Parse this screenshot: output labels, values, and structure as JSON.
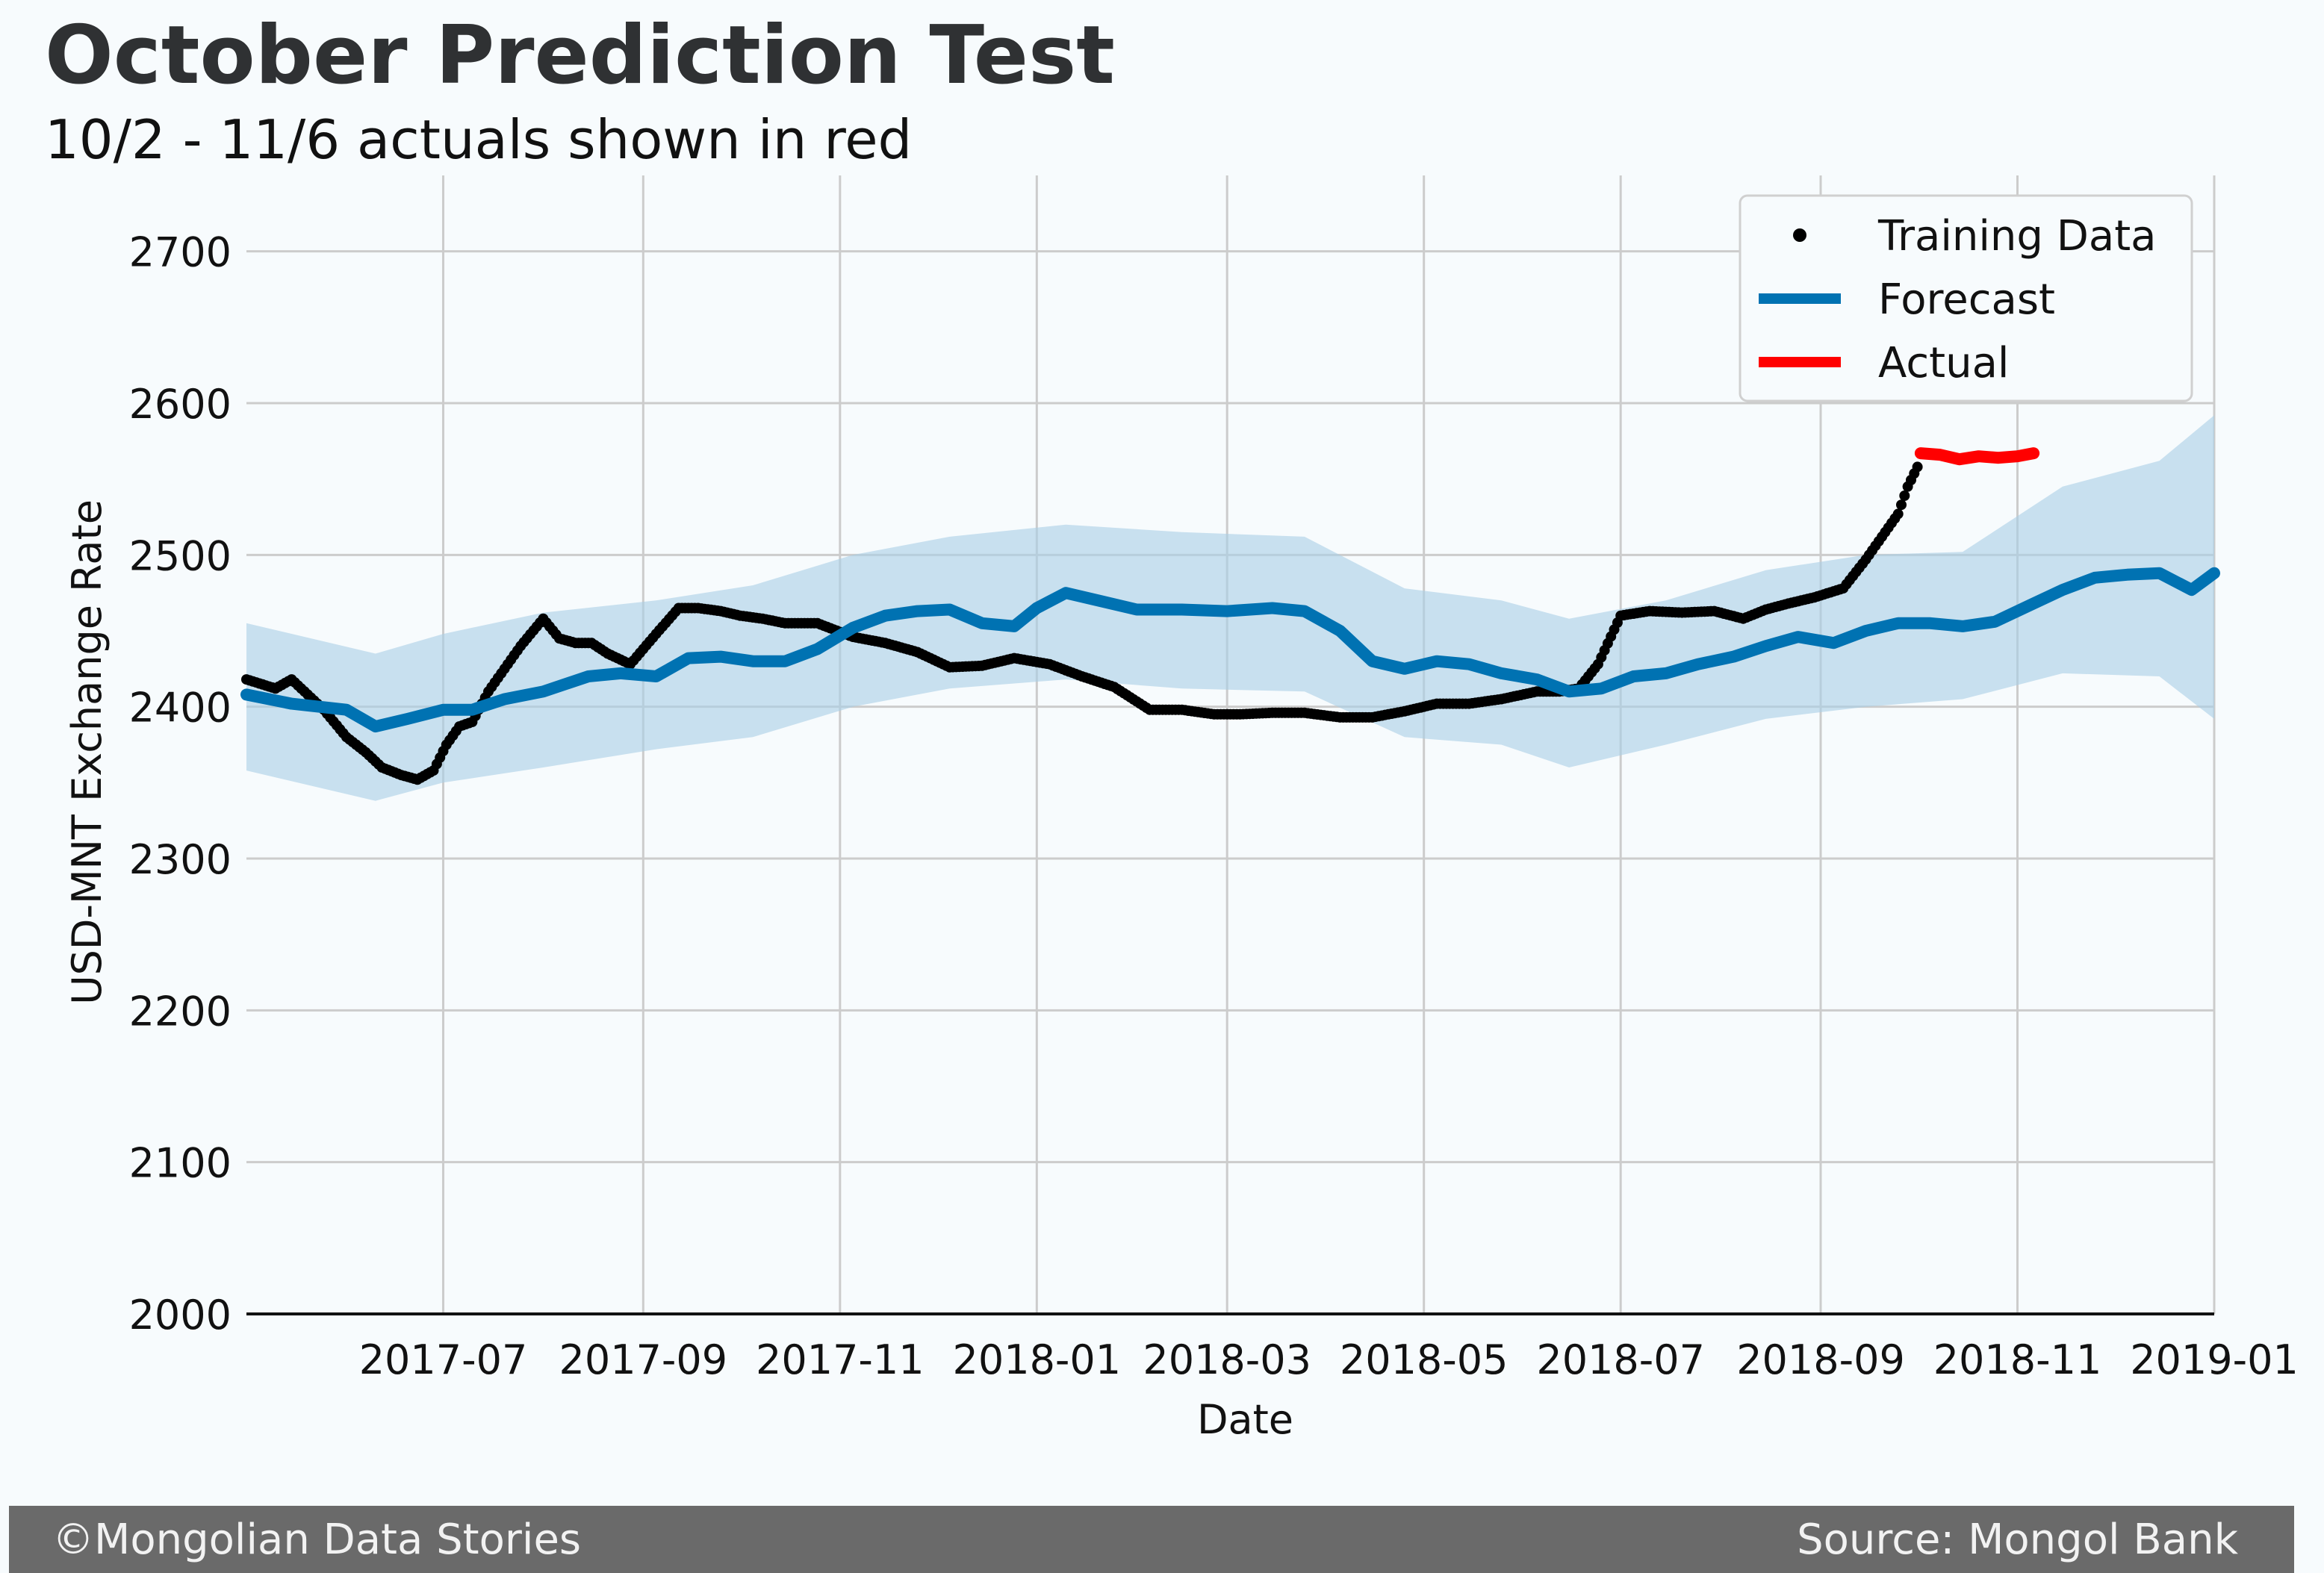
{
  "header": {
    "title": "October Prediction Test",
    "subtitle": "10/2 - 11/6 actuals shown in red"
  },
  "footer": {
    "left_text": "©Mongolian Data Stories",
    "right_text": "Source: Mongol Bank"
  },
  "colors": {
    "background": "#f7fbfd",
    "training": "#000000",
    "forecast": "#0072b2",
    "band": "#a8cfe6",
    "actual": "#ff0000",
    "grid": "#cccccc"
  },
  "chart_data": {
    "type": "line",
    "xlabel": "Date",
    "ylabel": "USD-MNT Exchange Rate",
    "xlim": [
      "2017-05-01",
      "2019-01-01"
    ],
    "ylim": [
      2000,
      2750
    ],
    "xticks": [
      "2017-07",
      "2017-09",
      "2017-11",
      "2018-01",
      "2018-03",
      "2018-05",
      "2018-07",
      "2018-09",
      "2018-11",
      "2019-01"
    ],
    "yticks": [
      2000,
      2100,
      2200,
      2300,
      2400,
      2500,
      2600,
      2700
    ],
    "grid": true,
    "legend_position": "top-right",
    "legend": [
      "Training Data",
      "Forecast",
      "Actual"
    ],
    "series": [
      {
        "name": "Training Data",
        "type": "scatter",
        "x": [
          "2017-05-01",
          "2017-05-10",
          "2017-05-15",
          "2017-05-20",
          "2017-05-25",
          "2017-06-01",
          "2017-06-07",
          "2017-06-12",
          "2017-06-18",
          "2017-06-23",
          "2017-06-28",
          "2017-07-02",
          "2017-07-06",
          "2017-07-10",
          "2017-07-15",
          "2017-07-20",
          "2017-07-25",
          "2017-08-01",
          "2017-08-06",
          "2017-08-11",
          "2017-08-16",
          "2017-08-21",
          "2017-08-28",
          "2017-09-05",
          "2017-09-12",
          "2017-09-18",
          "2017-09-25",
          "2017-10-01",
          "2017-10-08",
          "2017-10-15",
          "2017-10-25",
          "2017-11-05",
          "2017-11-15",
          "2017-11-25",
          "2017-12-05",
          "2017-12-15",
          "2017-12-25",
          "2018-01-05",
          "2018-01-15",
          "2018-01-25",
          "2018-02-05",
          "2018-02-15",
          "2018-02-25",
          "2018-03-05",
          "2018-03-15",
          "2018-03-25",
          "2018-04-05",
          "2018-04-15",
          "2018-04-25",
          "2018-05-05",
          "2018-05-15",
          "2018-05-25",
          "2018-06-05",
          "2018-06-12",
          "2018-06-18",
          "2018-06-24",
          "2018-07-01",
          "2018-07-10",
          "2018-07-20",
          "2018-07-30",
          "2018-08-08",
          "2018-08-15",
          "2018-08-22",
          "2018-08-30",
          "2018-09-08",
          "2018-09-15",
          "2018-09-20",
          "2018-09-25",
          "2018-09-28",
          "2018-10-01"
        ],
        "y": [
          2418,
          2412,
          2418,
          2408,
          2398,
          2380,
          2370,
          2360,
          2355,
          2352,
          2358,
          2375,
          2387,
          2390,
          2410,
          2425,
          2440,
          2458,
          2445,
          2442,
          2442,
          2435,
          2428,
          2448,
          2465,
          2465,
          2463,
          2460,
          2458,
          2455,
          2455,
          2446,
          2442,
          2436,
          2426,
          2427,
          2432,
          2428,
          2420,
          2413,
          2398,
          2398,
          2395,
          2395,
          2396,
          2396,
          2393,
          2393,
          2397,
          2402,
          2402,
          2405,
          2410,
          2410,
          2412,
          2428,
          2460,
          2463,
          2462,
          2463,
          2458,
          2464,
          2468,
          2472,
          2478,
          2497,
          2512,
          2527,
          2545,
          2558
        ]
      },
      {
        "name": "Forecast",
        "type": "line",
        "x": [
          "2017-05-01",
          "2017-05-15",
          "2017-06-01",
          "2017-06-10",
          "2017-06-20",
          "2017-07-01",
          "2017-07-10",
          "2017-07-20",
          "2017-08-01",
          "2017-08-15",
          "2017-08-25",
          "2017-09-05",
          "2017-09-15",
          "2017-09-25",
          "2017-10-05",
          "2017-10-15",
          "2017-10-25",
          "2017-11-05",
          "2017-11-15",
          "2017-11-25",
          "2017-12-05",
          "2017-12-15",
          "2017-12-25",
          "2018-01-01",
          "2018-01-10",
          "2018-01-20",
          "2018-02-01",
          "2018-02-15",
          "2018-03-01",
          "2018-03-15",
          "2018-03-25",
          "2018-04-05",
          "2018-04-15",
          "2018-04-25",
          "2018-05-05",
          "2018-05-15",
          "2018-05-25",
          "2018-06-05",
          "2018-06-15",
          "2018-06-25",
          "2018-07-05",
          "2018-07-15",
          "2018-07-25",
          "2018-08-05",
          "2018-08-15",
          "2018-08-25",
          "2018-09-05",
          "2018-09-15",
          "2018-09-25",
          "2018-10-05",
          "2018-10-15",
          "2018-10-25",
          "2018-11-05",
          "2018-11-15",
          "2018-11-25",
          "2018-12-05",
          "2018-12-15",
          "2018-12-25",
          "2019-01-01"
        ],
        "y": [
          2408,
          2402,
          2398,
          2387,
          2392,
          2398,
          2398,
          2405,
          2410,
          2420,
          2422,
          2420,
          2432,
          2433,
          2430,
          2430,
          2438,
          2452,
          2460,
          2463,
          2464,
          2455,
          2453,
          2465,
          2475,
          2470,
          2464,
          2464,
          2463,
          2465,
          2463,
          2450,
          2430,
          2425,
          2430,
          2428,
          2422,
          2418,
          2410,
          2412,
          2420,
          2422,
          2428,
          2433,
          2440,
          2446,
          2442,
          2450,
          2455,
          2455,
          2453,
          2456,
          2467,
          2477,
          2485,
          2487,
          2488,
          2477,
          2488
        ]
      },
      {
        "name": "Actual",
        "type": "line",
        "x": [
          "2018-10-02",
          "2018-10-08",
          "2018-10-14",
          "2018-10-20",
          "2018-10-26",
          "2018-11-01",
          "2018-11-06"
        ],
        "y": [
          2567,
          2566,
          2563,
          2565,
          2564,
          2565,
          2567
        ]
      }
    ],
    "uncertainty_band": {
      "x": [
        "2017-05-01",
        "2017-06-10",
        "2017-07-01",
        "2017-08-01",
        "2017-09-05",
        "2017-10-05",
        "2017-11-05",
        "2017-12-05",
        "2018-01-10",
        "2018-02-15",
        "2018-03-25",
        "2018-04-25",
        "2018-05-25",
        "2018-06-15",
        "2018-07-15",
        "2018-08-15",
        "2018-09-15",
        "2018-10-15",
        "2018-11-15",
        "2018-12-15",
        "2019-01-01"
      ],
      "lower": [
        2358,
        2338,
        2350,
        2360,
        2372,
        2380,
        2400,
        2412,
        2418,
        2412,
        2410,
        2380,
        2375,
        2360,
        2375,
        2392,
        2400,
        2405,
        2422,
        2420,
        2392
      ],
      "upper": [
        2455,
        2435,
        2448,
        2462,
        2470,
        2480,
        2500,
        2512,
        2520,
        2515,
        2512,
        2478,
        2470,
        2458,
        2470,
        2490,
        2500,
        2502,
        2545,
        2562,
        2592
      ]
    }
  }
}
